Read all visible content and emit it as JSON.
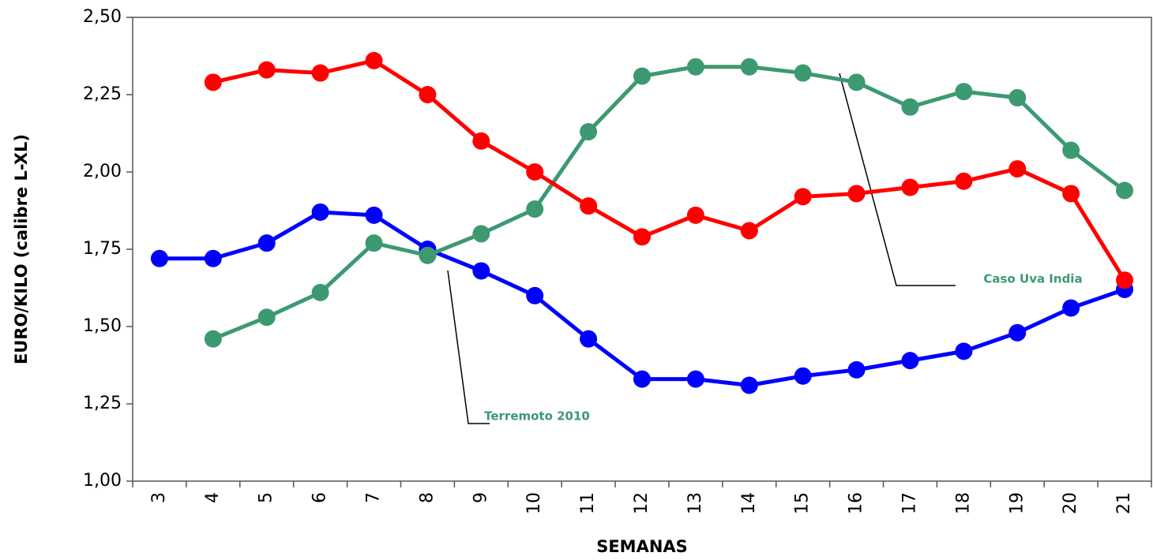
{
  "chart_data": {
    "type": "line",
    "y_label": "EURO/KILO (calibre L-XL)",
    "x_label": "SEMANAS",
    "categories": [
      "3",
      "4",
      "5",
      "6",
      "7",
      "8",
      "9",
      "10",
      "11",
      "12",
      "13",
      "14",
      "15",
      "16",
      "17",
      "18",
      "19",
      "20",
      "21"
    ],
    "series": [
      {
        "color": "#0000ff",
        "values": [
          1.72,
          1.72,
          1.77,
          1.87,
          1.86,
          1.75,
          1.68,
          1.6,
          1.46,
          1.33,
          1.33,
          1.31,
          1.34,
          1.36,
          1.39,
          1.42,
          1.48,
          1.56,
          1.62
        ]
      },
      {
        "color": "#3d9970",
        "values": [
          null,
          1.46,
          1.53,
          1.61,
          1.77,
          1.73,
          1.8,
          1.88,
          2.13,
          2.31,
          2.34,
          2.34,
          2.32,
          2.29,
          2.21,
          2.26,
          2.24,
          2.07,
          1.94
        ]
      },
      {
        "color": "#ff0000",
        "values": [
          null,
          2.29,
          2.33,
          2.32,
          2.36,
          2.25,
          2.1,
          2.0,
          1.89,
          1.79,
          1.86,
          1.81,
          1.92,
          1.93,
          1.95,
          1.97,
          2.01,
          1.93,
          1.65
        ]
      }
    ],
    "ylim": [
      1,
      2.5
    ],
    "yticks": [
      {
        "value": 1,
        "label": "1,00"
      },
      {
        "value": 1.25,
        "label": "1,25"
      },
      {
        "value": 1.5,
        "label": "1,50"
      },
      {
        "value": 1.75,
        "label": "1,75"
      },
      {
        "value": 2,
        "label": "2,00"
      },
      {
        "value": 2.25,
        "label": "2,25"
      },
      {
        "value": 2.5,
        "label": "2,50"
      }
    ],
    "grid": false,
    "annotations": [
      {
        "text": "Terremoto 2010",
        "color": "#3d9970"
      },
      {
        "text": "Caso Uva India",
        "color": "#3d9970"
      }
    ]
  }
}
